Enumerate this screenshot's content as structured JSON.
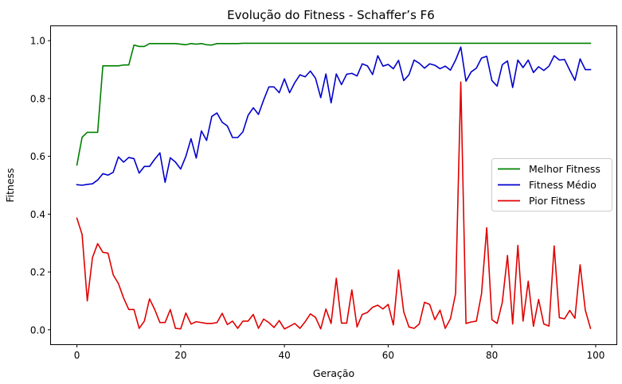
{
  "chart_data": {
    "type": "line",
    "title": "Evolução do Fitness - Schaffer’s F6",
    "xlabel": "Geração",
    "ylabel": "Fitness",
    "xlim": [
      -5,
      104
    ],
    "ylim": [
      -0.05,
      1.05
    ],
    "xticks": [
      0,
      20,
      40,
      60,
      80,
      100
    ],
    "yticks": [
      0.0,
      0.2,
      0.4,
      0.6,
      0.8,
      1.0
    ],
    "xtick_labels": [
      "0",
      "20",
      "40",
      "60",
      "80",
      "100"
    ],
    "ytick_labels": [
      "0.0",
      "0.2",
      "0.4",
      "0.6",
      "0.8",
      "1.0"
    ],
    "grid": false,
    "legend_position": "center-right",
    "x": [
      0,
      1,
      2,
      3,
      4,
      5,
      6,
      7,
      8,
      9,
      10,
      11,
      12,
      13,
      14,
      15,
      16,
      17,
      18,
      19,
      20,
      21,
      22,
      23,
      24,
      25,
      26,
      27,
      28,
      29,
      30,
      31,
      32,
      33,
      34,
      35,
      36,
      37,
      38,
      39,
      40,
      41,
      42,
      43,
      44,
      45,
      46,
      47,
      48,
      49,
      50,
      51,
      52,
      53,
      54,
      55,
      56,
      57,
      58,
      59,
      60,
      61,
      62,
      63,
      64,
      65,
      66,
      67,
      68,
      69,
      70,
      71,
      72,
      73,
      74,
      75,
      76,
      77,
      78,
      79,
      80,
      81,
      82,
      83,
      84,
      85,
      86,
      87,
      88,
      89,
      90,
      91,
      92,
      93,
      94,
      95,
      96,
      97,
      98,
      99
    ],
    "series": [
      {
        "name": "Melhor Fitness",
        "color": "#008000",
        "values": [
          0.57,
          0.666,
          0.683,
          0.683,
          0.683,
          0.913,
          0.913,
          0.913,
          0.913,
          0.916,
          0.916,
          0.985,
          0.98,
          0.98,
          0.99,
          0.99,
          0.99,
          0.99,
          0.99,
          0.99,
          0.988,
          0.986,
          0.99,
          0.988,
          0.99,
          0.986,
          0.985,
          0.99,
          0.99,
          0.99,
          0.99,
          0.99,
          0.991,
          0.991,
          0.991,
          0.991,
          0.991,
          0.991,
          0.991,
          0.991,
          0.991,
          0.991,
          0.991,
          0.991,
          0.991,
          0.991,
          0.991,
          0.991,
          0.991,
          0.991,
          0.991,
          0.991,
          0.991,
          0.991,
          0.991,
          0.991,
          0.991,
          0.991,
          0.991,
          0.991,
          0.991,
          0.991,
          0.991,
          0.991,
          0.991,
          0.991,
          0.991,
          0.991,
          0.991,
          0.991,
          0.991,
          0.991,
          0.991,
          0.991,
          0.991,
          0.991,
          0.991,
          0.991,
          0.991,
          0.991,
          0.991,
          0.991,
          0.991,
          0.991,
          0.991,
          0.991,
          0.991,
          0.991,
          0.991,
          0.991,
          0.991,
          0.991,
          0.991,
          0.991,
          0.991,
          0.991,
          0.991,
          0.991,
          0.991,
          0.991
        ]
      },
      {
        "name": "Fitness Médio",
        "color": "#0000cc",
        "values": [
          0.502,
          0.5,
          0.503,
          0.505,
          0.518,
          0.54,
          0.535,
          0.545,
          0.598,
          0.58,
          0.596,
          0.592,
          0.542,
          0.565,
          0.565,
          0.59,
          0.612,
          0.51,
          0.595,
          0.58,
          0.556,
          0.6,
          0.661,
          0.594,
          0.688,
          0.655,
          0.738,
          0.75,
          0.718,
          0.705,
          0.665,
          0.665,
          0.685,
          0.742,
          0.768,
          0.745,
          0.795,
          0.84,
          0.84,
          0.82,
          0.868,
          0.82,
          0.855,
          0.882,
          0.875,
          0.895,
          0.87,
          0.803,
          0.885,
          0.785,
          0.885,
          0.848,
          0.884,
          0.887,
          0.878,
          0.92,
          0.913,
          0.883,
          0.948,
          0.912,
          0.918,
          0.903,
          0.932,
          0.862,
          0.882,
          0.933,
          0.922,
          0.905,
          0.92,
          0.915,
          0.903,
          0.912,
          0.898,
          0.933,
          0.978,
          0.86,
          0.892,
          0.905,
          0.94,
          0.946,
          0.862,
          0.843,
          0.917,
          0.93,
          0.838,
          0.933,
          0.907,
          0.933,
          0.89,
          0.91,
          0.897,
          0.912,
          0.948,
          0.933,
          0.935,
          0.898,
          0.863,
          0.937,
          0.9,
          0.9
        ]
      },
      {
        "name": "Pior Fitness",
        "color": "#e00000",
        "values": [
          0.386,
          0.33,
          0.1,
          0.25,
          0.298,
          0.268,
          0.265,
          0.19,
          0.16,
          0.11,
          0.07,
          0.07,
          0.005,
          0.03,
          0.107,
          0.07,
          0.025,
          0.025,
          0.07,
          0.005,
          0.003,
          0.058,
          0.02,
          0.028,
          0.025,
          0.022,
          0.022,
          0.025,
          0.057,
          0.018,
          0.03,
          0.005,
          0.03,
          0.03,
          0.053,
          0.005,
          0.037,
          0.025,
          0.008,
          0.032,
          0.003,
          0.012,
          0.022,
          0.005,
          0.028,
          0.055,
          0.043,
          0.003,
          0.072,
          0.022,
          0.178,
          0.023,
          0.023,
          0.138,
          0.01,
          0.053,
          0.06,
          0.078,
          0.085,
          0.072,
          0.088,
          0.017,
          0.207,
          0.062,
          0.01,
          0.005,
          0.02,
          0.095,
          0.088,
          0.035,
          0.068,
          0.005,
          0.038,
          0.125,
          0.857,
          0.022,
          0.027,
          0.03,
          0.125,
          0.353,
          0.035,
          0.022,
          0.095,
          0.257,
          0.02,
          0.292,
          0.03,
          0.168,
          0.012,
          0.105,
          0.02,
          0.013,
          0.29,
          0.042,
          0.038,
          0.067,
          0.04,
          0.225,
          0.068,
          0.005
        ]
      }
    ]
  }
}
